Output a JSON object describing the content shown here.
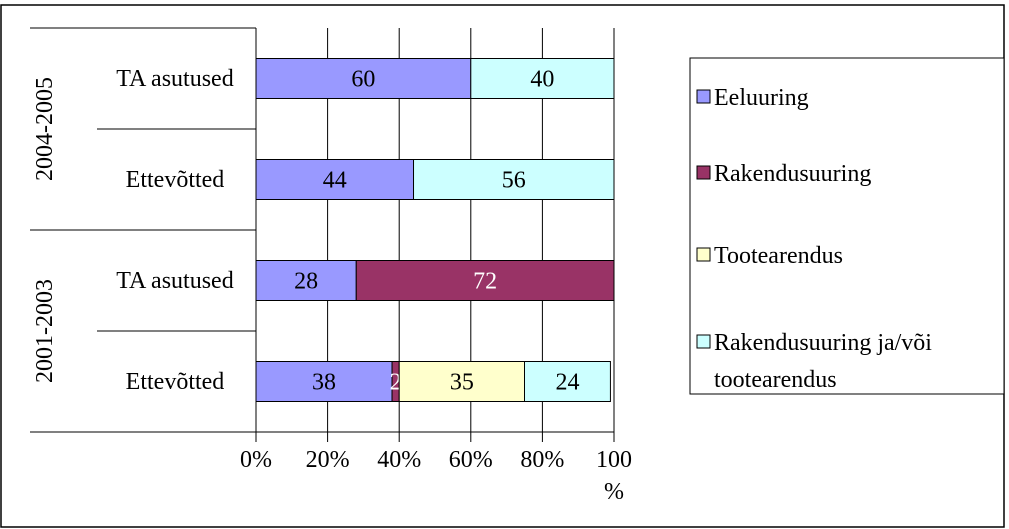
{
  "chart_data": {
    "type": "stacked_bar_horizontal",
    "groups": [
      "2004-2005",
      "2001-2003"
    ],
    "categories": [
      "TA asutused",
      "Ettevõtted",
      "TA asutused",
      "Ettevõtted"
    ],
    "series": [
      {
        "name": "Eeluuring",
        "color": "#9999ff",
        "label_color": "#000000",
        "values": [
          60,
          44,
          28,
          38
        ]
      },
      {
        "name": "Rakendusuuring",
        "color": "#993366",
        "label_color": "#ffffff",
        "values": [
          null,
          null,
          72,
          2
        ]
      },
      {
        "name": "Tootearendus",
        "color": "#ffffcc",
        "label_color": "#000000",
        "values": [
          null,
          null,
          null,
          35
        ]
      },
      {
        "name": "Rakendusuuring ja/või tootearendus",
        "color": "#ccffff",
        "label_color": "#000000",
        "values": [
          40,
          56,
          null,
          24
        ]
      }
    ],
    "xlim": [
      0,
      100
    ],
    "xticks": [
      {
        "value": 0,
        "label": "0%"
      },
      {
        "value": 20,
        "label": "20%"
      },
      {
        "value": 40,
        "label": "40%"
      },
      {
        "value": 60,
        "label": "60%"
      },
      {
        "value": 80,
        "label": "80%"
      },
      {
        "value": 100,
        "label": "100 %"
      }
    ],
    "grid": true,
    "legend": "right"
  }
}
